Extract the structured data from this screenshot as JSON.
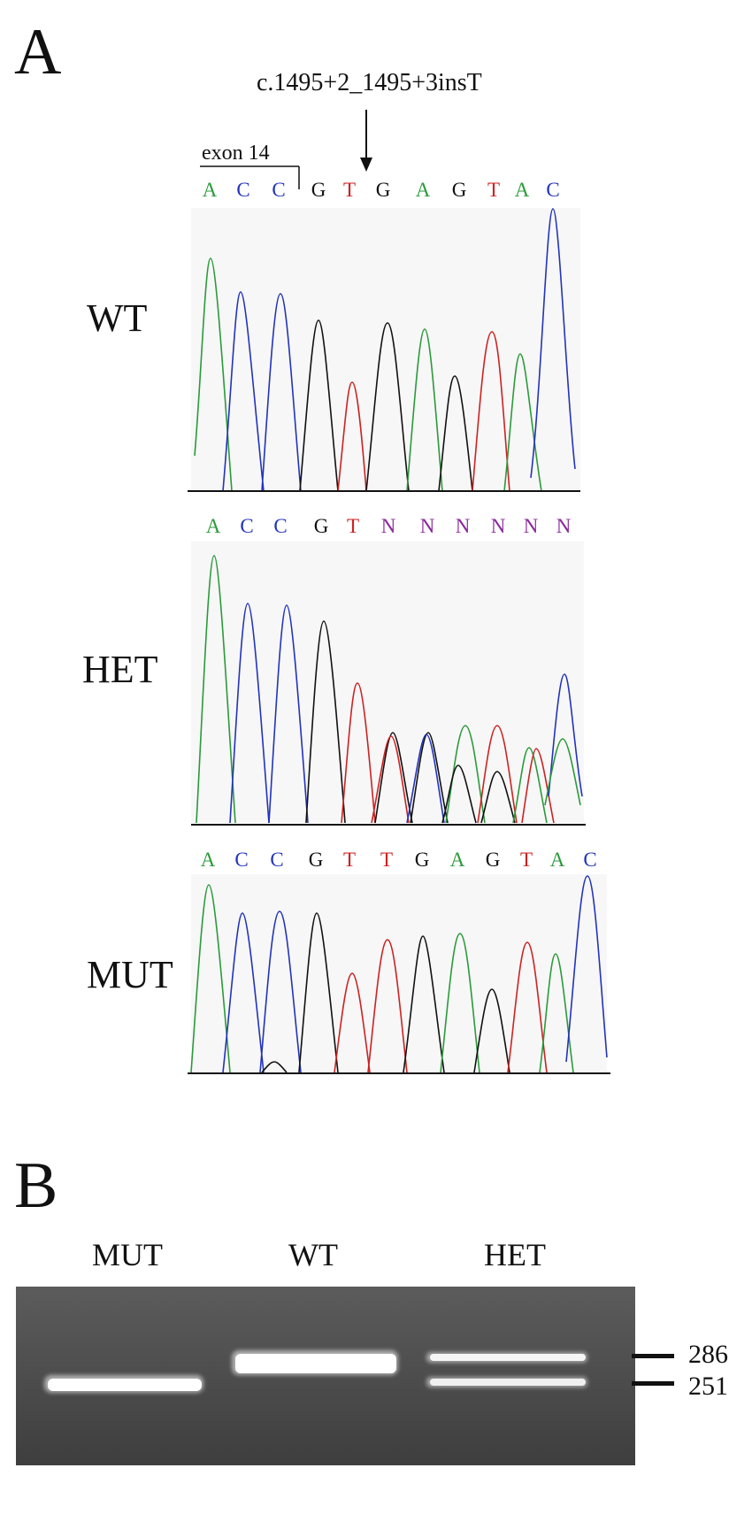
{
  "panel_a": {
    "letter": "A",
    "mutation_label": "c.1495+2_1495+3insT",
    "exon_label": "exon 14",
    "base_colors": {
      "A": "#2a9a3a",
      "C": "#2233bb",
      "G": "#111111",
      "T": "#cc2222",
      "N": "#8a2a9a"
    },
    "traces": [
      {
        "label": "WT",
        "bases": [
          "A",
          "C",
          "C",
          "G",
          "T",
          "G",
          "A",
          "G",
          "T",
          "A",
          "C"
        ]
      },
      {
        "label": "HET",
        "bases": [
          "A",
          "C",
          "C",
          "G",
          "T",
          "N",
          "N",
          "N",
          "N",
          "N",
          "N"
        ]
      },
      {
        "label": "MUT",
        "bases": [
          "A",
          "C",
          "C",
          "G",
          "T",
          "T",
          "G",
          "A",
          "G",
          "T",
          "A",
          "C"
        ]
      }
    ]
  },
  "panel_b": {
    "letter": "B",
    "lanes": [
      "MUT",
      "WT",
      "HET"
    ],
    "size_markers": [
      "286",
      "251"
    ]
  }
}
